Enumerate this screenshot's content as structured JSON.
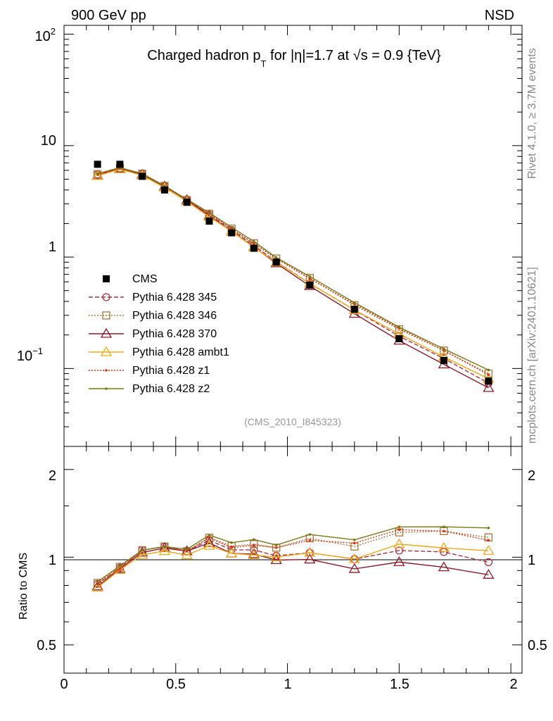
{
  "header": {
    "left": "900 GeV pp",
    "right": "NSD",
    "side_top": "Rivet 4.1.0, ≥ 3.7M events",
    "side_bottom": "mcplots.cern.ch [arXiv:2401.10621]",
    "analysis_id": "(CMS_2010_I845323)"
  },
  "title": {
    "part1": "Charged hadron p",
    "sub": "T",
    "part2": " for |η|=1.7 at √s = 0.9 {TeV}"
  },
  "main_ticks": [
    {
      "label": "10",
      "sup": "2"
    },
    {
      "label": "10",
      "sup": ""
    },
    {
      "label": "1",
      "sup": ""
    },
    {
      "label": "10",
      "sup": "−1"
    }
  ],
  "ratio_ticks": [
    "2",
    "1",
    "0.5"
  ],
  "ratio_ylabel": "Ratio to CMS",
  "x_ticks": [
    "0",
    "0.5",
    "1",
    "1.5",
    "2"
  ],
  "legend": [
    {
      "label": "CMS"
    },
    {
      "label": "Pythia 6.428 345"
    },
    {
      "label": "Pythia 6.428 346"
    },
    {
      "label": "Pythia 6.428 370"
    },
    {
      "label": "Pythia 6.428 ambt1"
    },
    {
      "label": "Pythia 6.428 z1"
    },
    {
      "label": "Pythia 6.428 z2"
    }
  ],
  "chart_data": {
    "type": "line",
    "y_scale": "log",
    "xlim": [
      0,
      2.05
    ],
    "ylim": [
      0.02,
      120
    ],
    "ratio_ylim": [
      0.4,
      2.4
    ],
    "x": [
      0.15,
      0.25,
      0.35,
      0.45,
      0.55,
      0.65,
      0.75,
      0.85,
      0.95,
      1.1,
      1.3,
      1.5,
      1.7,
      1.9
    ],
    "data": {
      "name": "CMS",
      "values": [
        6.8,
        6.8,
        5.3,
        4.0,
        3.1,
        2.1,
        1.65,
        1.2,
        0.9,
        0.56,
        0.34,
        0.185,
        0.118,
        0.077
      ]
    },
    "series": [
      {
        "name": "Pythia 6.428 345",
        "color": "#b03040",
        "marker": "circle",
        "dash": "6,3",
        "values": [
          5.5,
          6.25,
          5.6,
          4.35,
          3.25,
          2.4,
          1.75,
          1.27,
          0.91,
          0.58,
          0.335,
          0.195,
          0.123,
          0.074
        ]
      },
      {
        "name": "Pythia 6.428 346",
        "color": "#a8783c",
        "marker": "square",
        "dash": "2,2",
        "values": [
          5.55,
          6.3,
          5.6,
          4.35,
          3.25,
          2.45,
          1.8,
          1.33,
          0.97,
          0.65,
          0.37,
          0.225,
          0.145,
          0.09
        ]
      },
      {
        "name": "Pythia 6.428 370",
        "color": "#8b1a2a",
        "marker": "triangle-open",
        "dash": "",
        "values": [
          5.4,
          6.2,
          5.5,
          4.3,
          3.25,
          2.35,
          1.7,
          1.23,
          0.88,
          0.55,
          0.31,
          0.178,
          0.109,
          0.067
        ]
      },
      {
        "name": "Pythia 6.428 ambt1",
        "color": "#f0a818",
        "marker": "triangle-open",
        "dash": "",
        "values": [
          5.35,
          6.15,
          5.4,
          4.2,
          3.15,
          2.3,
          1.7,
          1.22,
          0.9,
          0.58,
          0.335,
          0.205,
          0.127,
          0.081
        ]
      },
      {
        "name": "Pythia 6.428 z1",
        "color": "#e03010",
        "marker": "dot",
        "dash": "2,2",
        "values": [
          5.5,
          6.2,
          5.6,
          4.35,
          3.25,
          2.45,
          1.78,
          1.32,
          0.97,
          0.64,
          0.38,
          0.23,
          0.145,
          0.088
        ]
      },
      {
        "name": "Pythia 6.428 z2",
        "color": "#7a7a18",
        "marker": "dot",
        "dash": "",
        "values": [
          5.6,
          6.35,
          5.6,
          4.35,
          3.3,
          2.5,
          1.85,
          1.38,
          0.99,
          0.67,
          0.39,
          0.235,
          0.15,
          0.097
        ]
      }
    ]
  }
}
